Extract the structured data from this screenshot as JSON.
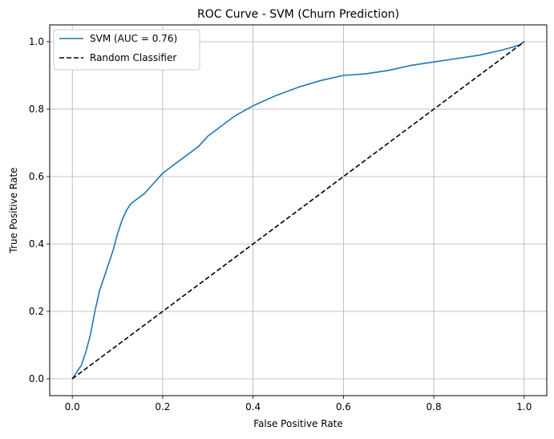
{
  "chart_data": {
    "type": "line",
    "title": "ROC Curve - SVM (Churn Prediction)",
    "xlabel": "False Positive Rate",
    "ylabel": "True Positive Rate",
    "xlim": [
      -0.05,
      1.05
    ],
    "ylim": [
      -0.05,
      1.05
    ],
    "x_ticks": [
      0.0,
      0.2,
      0.4,
      0.6,
      0.8,
      1.0
    ],
    "y_ticks": [
      0.0,
      0.2,
      0.4,
      0.6,
      0.8,
      1.0
    ],
    "x_tick_labels": [
      "0.0",
      "0.2",
      "0.4",
      "0.6",
      "0.8",
      "1.0"
    ],
    "y_tick_labels": [
      "0.0",
      "0.2",
      "0.4",
      "0.6",
      "0.8",
      "1.0"
    ],
    "grid": true,
    "legend_position": "upper-left",
    "series": [
      {
        "name": "SVM (AUC = 0.76)",
        "color": "#1f77b4",
        "style": "solid",
        "x": [
          0.0,
          0.01,
          0.02,
          0.03,
          0.04,
          0.05,
          0.06,
          0.07,
          0.08,
          0.09,
          0.1,
          0.11,
          0.12,
          0.13,
          0.14,
          0.15,
          0.16,
          0.18,
          0.2,
          0.22,
          0.25,
          0.28,
          0.3,
          0.33,
          0.36,
          0.4,
          0.45,
          0.5,
          0.55,
          0.6,
          0.65,
          0.7,
          0.75,
          0.8,
          0.85,
          0.9,
          0.95,
          0.99,
          1.0
        ],
        "y": [
          0.0,
          0.02,
          0.04,
          0.08,
          0.13,
          0.2,
          0.26,
          0.3,
          0.34,
          0.38,
          0.43,
          0.47,
          0.5,
          0.52,
          0.53,
          0.54,
          0.55,
          0.58,
          0.61,
          0.63,
          0.66,
          0.69,
          0.72,
          0.75,
          0.78,
          0.81,
          0.84,
          0.865,
          0.885,
          0.9,
          0.905,
          0.915,
          0.93,
          0.94,
          0.95,
          0.96,
          0.975,
          0.99,
          1.0
        ]
      },
      {
        "name": "Random Classifier",
        "color": "#000000",
        "style": "dashed",
        "x": [
          0.0,
          1.0
        ],
        "y": [
          0.0,
          1.0
        ]
      }
    ]
  }
}
